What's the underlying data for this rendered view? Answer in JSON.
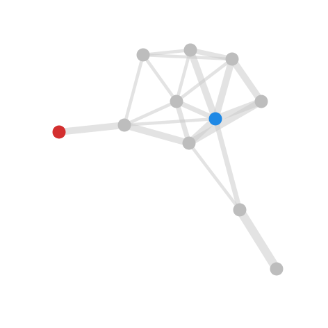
{
  "graph": {
    "type": "network",
    "colors": {
      "background": "#ffffff",
      "edge": "#cccccc",
      "node_default": "#bdbdbd",
      "node_red": "#d32f2f",
      "node_blue": "#1e88e5"
    },
    "nodes": [
      {
        "id": "n1",
        "color": "node_default"
      },
      {
        "id": "n2",
        "color": "node_default"
      },
      {
        "id": "n3",
        "color": "node_default"
      },
      {
        "id": "n4",
        "color": "node_default"
      },
      {
        "id": "n5",
        "color": "node_default"
      },
      {
        "id": "n6",
        "color": "node_blue"
      },
      {
        "id": "n7",
        "color": "node_red"
      },
      {
        "id": "n8",
        "color": "node_default"
      },
      {
        "id": "n9",
        "color": "node_default"
      },
      {
        "id": "n10",
        "color": "node_default"
      },
      {
        "id": "n11",
        "color": "node_default"
      }
    ],
    "edges": [
      {
        "source": "n1",
        "target": "n2",
        "weight": 1
      },
      {
        "source": "n1",
        "target": "n3",
        "weight": 1
      },
      {
        "source": "n2",
        "target": "n3",
        "weight": 2
      },
      {
        "source": "n1",
        "target": "n8",
        "weight": 1
      },
      {
        "source": "n1",
        "target": "n5",
        "weight": 1
      },
      {
        "source": "n2",
        "target": "n5",
        "weight": 1
      },
      {
        "source": "n2",
        "target": "n6",
        "weight": 3
      },
      {
        "source": "n3",
        "target": "n4",
        "weight": 3
      },
      {
        "source": "n3",
        "target": "n6",
        "weight": 3
      },
      {
        "source": "n3",
        "target": "n5",
        "weight": 1
      },
      {
        "source": "n4",
        "target": "n6",
        "weight": 3
      },
      {
        "source": "n4",
        "target": "n9",
        "weight": 3
      },
      {
        "source": "n5",
        "target": "n6",
        "weight": 2
      },
      {
        "source": "n5",
        "target": "n8",
        "weight": 1
      },
      {
        "source": "n5",
        "target": "n9",
        "weight": 2
      },
      {
        "source": "n6",
        "target": "n9",
        "weight": 3
      },
      {
        "source": "n6",
        "target": "n8",
        "weight": 1
      },
      {
        "source": "n7",
        "target": "n8",
        "weight": 3
      },
      {
        "source": "n8",
        "target": "n9",
        "weight": 3
      },
      {
        "source": "n9",
        "target": "n10",
        "weight": 1
      },
      {
        "source": "n6",
        "target": "n10",
        "weight": 2
      },
      {
        "source": "n10",
        "target": "n11",
        "weight": 4
      }
    ]
  }
}
